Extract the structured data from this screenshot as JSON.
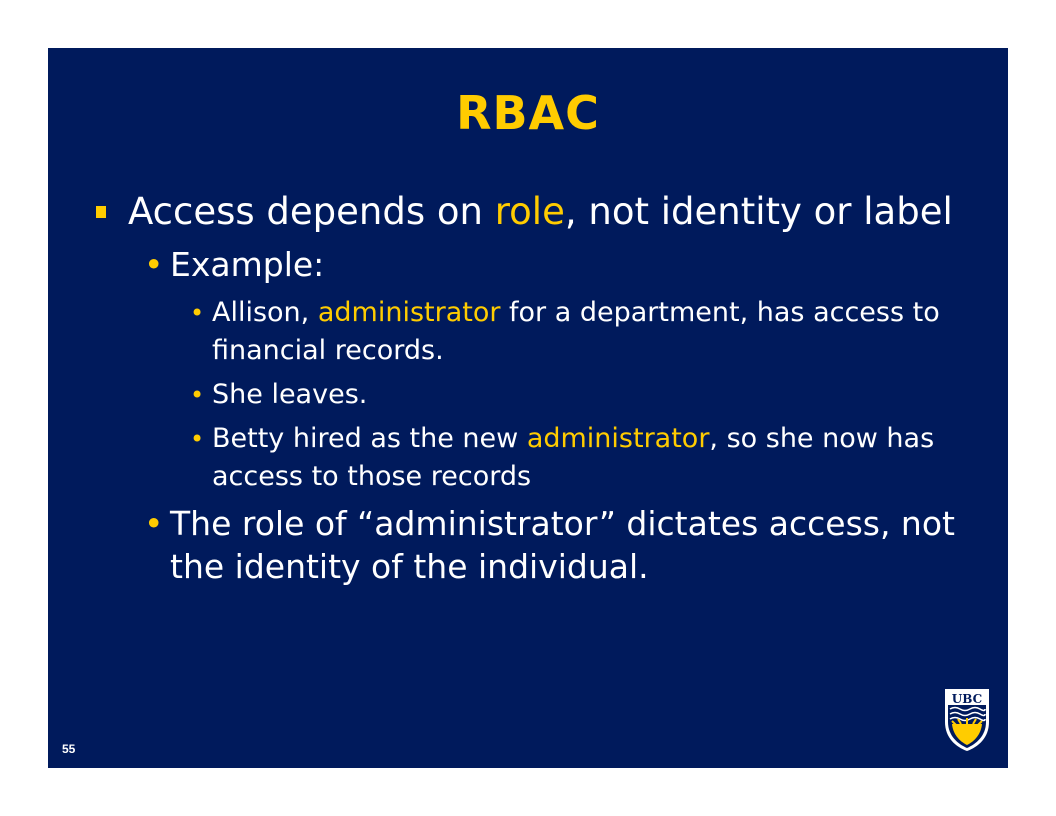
{
  "slide": {
    "title": "RBAC",
    "page_number": "55",
    "logo_text": "UBC",
    "bullets": [
      {
        "level": 1,
        "parts": [
          {
            "text": "Access depends on ",
            "highlight": false
          },
          {
            "text": "role",
            "highlight": true
          },
          {
            "text": ", not identity or label",
            "highlight": false
          }
        ]
      },
      {
        "level": 2,
        "parts": [
          {
            "text": "Example:",
            "highlight": false
          }
        ]
      },
      {
        "level": 3,
        "parts": [
          {
            "text": "Allison, ",
            "highlight": false
          },
          {
            "text": "administrator",
            "highlight": true
          },
          {
            "text": " for a department, has access to financial records.",
            "highlight": false
          }
        ]
      },
      {
        "level": 3,
        "parts": [
          {
            "text": "She leaves.",
            "highlight": false
          }
        ]
      },
      {
        "level": 3,
        "parts": [
          {
            "text": "Betty hired as the new ",
            "highlight": false
          },
          {
            "text": "administrator",
            "highlight": true
          },
          {
            "text": ", so she now has access to those records",
            "highlight": false
          }
        ]
      },
      {
        "level": 2,
        "parts": [
          {
            "text": "The role of “administrator” dictates access, not the identity of the individual.",
            "highlight": false
          }
        ]
      }
    ]
  },
  "colors": {
    "background": "#001a5c",
    "accent": "#ffcc00",
    "text": "#ffffff"
  }
}
